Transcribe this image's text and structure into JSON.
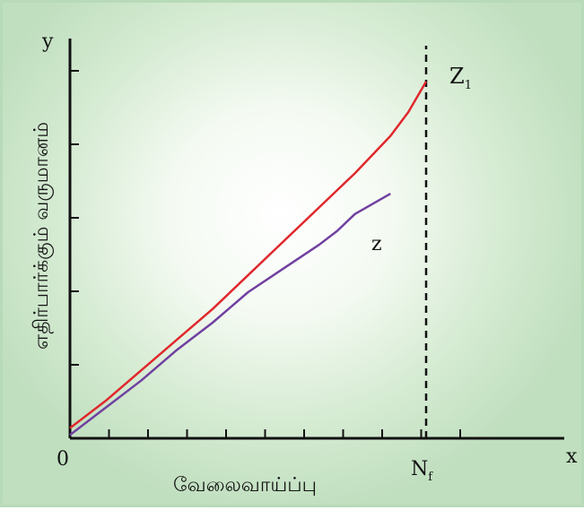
{
  "chart_data": {
    "type": "line",
    "title": "",
    "xlabel": "வேலைவாய்ப்பு",
    "ylabel": "எதிர்பார்க்கும் வருமானம்",
    "x_axis_symbol": "x",
    "y_axis_symbol": "y",
    "origin_label": "0",
    "xlim": [
      0,
      10
    ],
    "ylim": [
      0,
      10
    ],
    "x_tick_count": 10,
    "y_tick_count": 5,
    "grid": false,
    "series": [
      {
        "name": "Z₁",
        "color": "#e0282c",
        "x": [
          0,
          1,
          2,
          3,
          4,
          5,
          6,
          7,
          8,
          9,
          9.5,
          10
        ],
        "y": [
          0.3,
          1.1,
          2.0,
          2.9,
          3.8,
          4.8,
          5.8,
          6.8,
          7.8,
          8.9,
          9.6,
          10.5
        ]
      },
      {
        "name": "Z",
        "color": "#7040a0",
        "x": [
          0,
          1,
          2,
          3,
          4,
          5,
          6,
          7,
          7.5,
          8,
          8.5,
          9.0
        ],
        "y": [
          0.1,
          0.9,
          1.7,
          2.6,
          3.4,
          4.3,
          5.0,
          5.7,
          6.1,
          6.6,
          6.9,
          7.2
        ]
      }
    ],
    "annotations": [
      {
        "label": "Nf",
        "x": 10,
        "style": "vertical-dashed"
      }
    ]
  }
}
